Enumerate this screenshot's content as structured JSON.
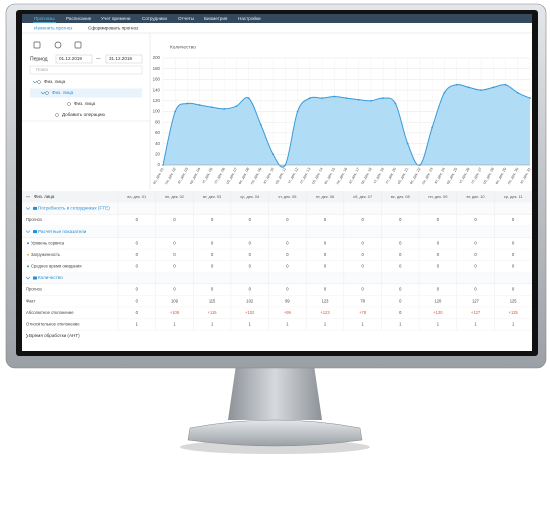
{
  "nav": [
    "Прогнозы",
    "Расписание",
    "Учет времени",
    "Сотрудники",
    "Отчеты",
    "Биометрия",
    "Настройки"
  ],
  "subnav": [
    "Изменить прогноз",
    "Сформировать прогноз"
  ],
  "period": {
    "label": "Период",
    "from": "01.12.2019",
    "separator": "—",
    "to": "31.12.2019"
  },
  "search": "Поиск",
  "tree": [
    "Физ. лица",
    "Физ. лица",
    "Физ. лица",
    "Добавить операцию"
  ],
  "chart_data": {
    "type": "area",
    "ylabel": "Количество",
    "categories": [
      "вс, дек. 01",
      "пн, дек. 02",
      "вт, дек. 03",
      "ср, дек. 04",
      "чт, дек. 05",
      "пт, дек. 06",
      "сб, дек. 07",
      "вс, дек. 08",
      "пн, дек. 09",
      "вт, дек. 10",
      "ср, дек. 11",
      "чт, дек. 12",
      "пт, дек. 13",
      "сб, дек. 14",
      "вс, дек. 15",
      "пн, дек. 16",
      "вт, дек. 17",
      "ср, дек. 18",
      "чт, дек. 19",
      "пт, дек. 20",
      "сб, дек. 21",
      "вс, дек. 22",
      "пн, дек. 23",
      "вт, дек. 24",
      "ср, дек. 25",
      "чт, дек. 26",
      "пт, дек. 27",
      "сб, дек. 28",
      "вс, дек. 29",
      "пн, дек. 30",
      "вт, дек. 31"
    ],
    "series": [
      {
        "name": "Количество",
        "color": "#3a9ad9",
        "values": [
          0,
          100,
          115,
          112,
          108,
          105,
          110,
          125,
          75,
          20,
          0,
          100,
          125,
          125,
          128,
          125,
          122,
          120,
          125,
          115,
          40,
          0,
          70,
          135,
          150,
          145,
          140,
          145,
          150,
          135,
          125
        ]
      }
    ],
    "ylim": [
      0,
      200
    ],
    "yticks": [
      0,
      20,
      40,
      60,
      80,
      100,
      120,
      140,
      160,
      180,
      200
    ],
    "grid": true
  },
  "table": {
    "entity": "Физ. лица",
    "columns": [
      "вс, дек. 01",
      "пн, дек. 02",
      "вт, дек. 03",
      "ср, дек. 04",
      "чт, дек. 05",
      "пт, дек. 06",
      "сб, дек. 07",
      "вс, дек. 08",
      "пн, дек. 09",
      "вт, дек. 10",
      "ср, дек. 11"
    ],
    "sections": [
      {
        "title": "Потребность в сотрудниках (FTE)",
        "rows": [
          {
            "label": "Прогноз",
            "cells": [
              0,
              0,
              0,
              0,
              0,
              0,
              0,
              0,
              0,
              0,
              0
            ]
          }
        ]
      },
      {
        "title": "Расчётные показатели",
        "rows": [
          {
            "label": "Уровень сервиса",
            "cells": [
              0,
              0,
              0,
              0,
              0,
              0,
              0,
              0,
              0,
              0,
              0
            ]
          },
          {
            "label": "Загруженность",
            "cells": [
              0,
              0,
              0,
              0,
              0,
              0,
              0,
              0,
              0,
              0,
              0
            ]
          },
          {
            "label": "Среднее время ожидания",
            "cells": [
              0,
              0,
              0,
              0,
              0,
              0,
              0,
              0,
              0,
              0,
              0
            ]
          }
        ]
      },
      {
        "title": "Количество",
        "rows": [
          {
            "label": "Прогноз",
            "cells": [
              0,
              0,
              0,
              0,
              0,
              0,
              0,
              0,
              0,
              0,
              0
            ]
          },
          {
            "label": "Факт",
            "cells": [
              0,
              109,
              115,
              102,
              99,
              123,
              78,
              0,
              120,
              127,
              125
            ]
          },
          {
            "label": "Абсолютное отклонение",
            "cells": [
              "0",
              "+109",
              "+115",
              "+102",
              "+99",
              "+123",
              "+78",
              "0",
              "+120",
              "+127",
              "+125"
            ]
          },
          {
            "label": "Относительное отклонение",
            "cells": [
              1,
              1,
              1,
              1,
              1,
              1,
              1,
              1,
              1,
              1,
              1
            ]
          }
        ]
      }
    ],
    "footer": "Время обработки (AHT)"
  }
}
